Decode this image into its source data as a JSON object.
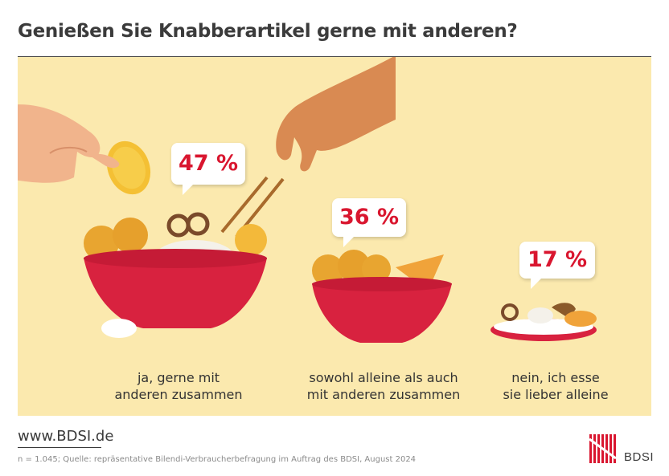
{
  "header": {
    "title": "Genießen Sie Knabberartikel gerne mit anderen?"
  },
  "chart_data": {
    "type": "bar",
    "categories": [
      "ja, gerne mit anderen zusammen",
      "sowohl alleine als auch mit anderen zusammen",
      "nein, ich esse sie lieber alleine"
    ],
    "values": [
      47,
      36,
      17
    ],
    "value_labels": [
      "47 %",
      "36 %",
      "17 %"
    ],
    "category_lines": [
      [
        "ja, gerne mit",
        "anderen zusammen"
      ],
      [
        "sowohl alleine als auch",
        "mit anderen zusammen"
      ],
      [
        "nein, ich esse",
        "sie lieber alleine"
      ]
    ]
  },
  "footer": {
    "url": "www.BDSI.de",
    "source": "n = 1.045; Quelle: repräsentative Bilendi-Verbraucherbefragung im Auftrag des BDSI, August 2024",
    "logo_text": "BDSI"
  },
  "colors": {
    "bowl": "#d8223f",
    "panel": "#fbe9ae",
    "accent": "#d9162f"
  }
}
